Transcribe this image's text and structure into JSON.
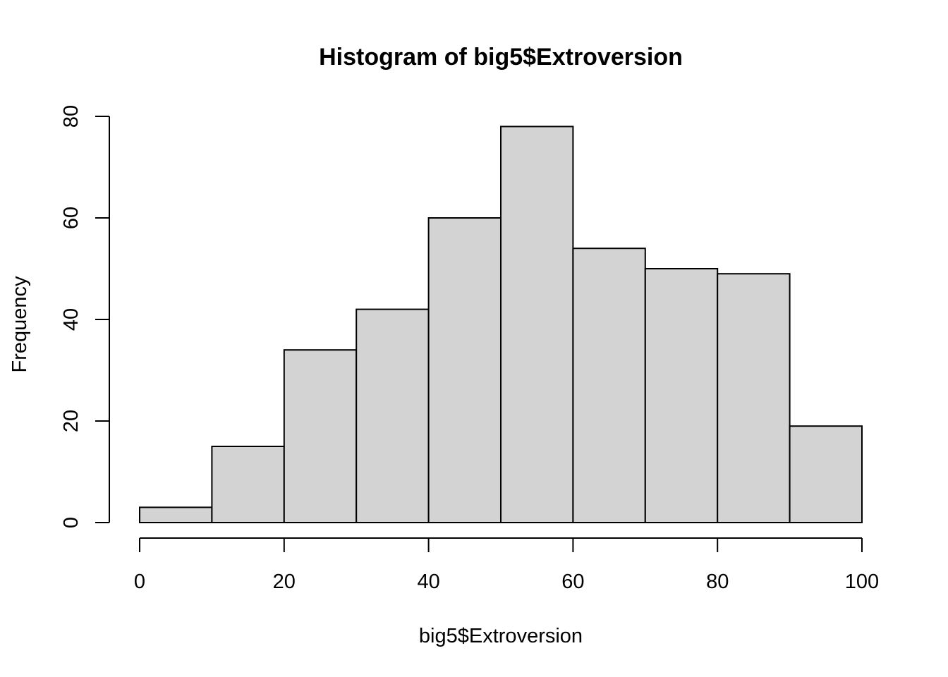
{
  "chart_data": {
    "type": "bar",
    "title": "Histogram of big5$Extroversion",
    "xlabel": "big5$Extroversion",
    "ylabel": "Frequency",
    "bins": [
      {
        "from": 0,
        "to": 10,
        "count": 3
      },
      {
        "from": 10,
        "to": 20,
        "count": 15
      },
      {
        "from": 20,
        "to": 30,
        "count": 34
      },
      {
        "from": 30,
        "to": 40,
        "count": 42
      },
      {
        "from": 40,
        "to": 50,
        "count": 60
      },
      {
        "from": 50,
        "to": 60,
        "count": 78
      },
      {
        "from": 60,
        "to": 70,
        "count": 54
      },
      {
        "from": 70,
        "to": 80,
        "count": 50
      },
      {
        "from": 80,
        "to": 90,
        "count": 49
      },
      {
        "from": 90,
        "to": 100,
        "count": 19
      }
    ],
    "xlim": [
      0,
      100
    ],
    "ylim": [
      0,
      80
    ],
    "x_ticks": [
      "0",
      "20",
      "40",
      "60",
      "80",
      "100"
    ],
    "y_ticks": [
      "0",
      "20",
      "40",
      "60",
      "80"
    ],
    "grid": false,
    "bar_color": "#d3d3d3",
    "edge_color": "#000000"
  }
}
